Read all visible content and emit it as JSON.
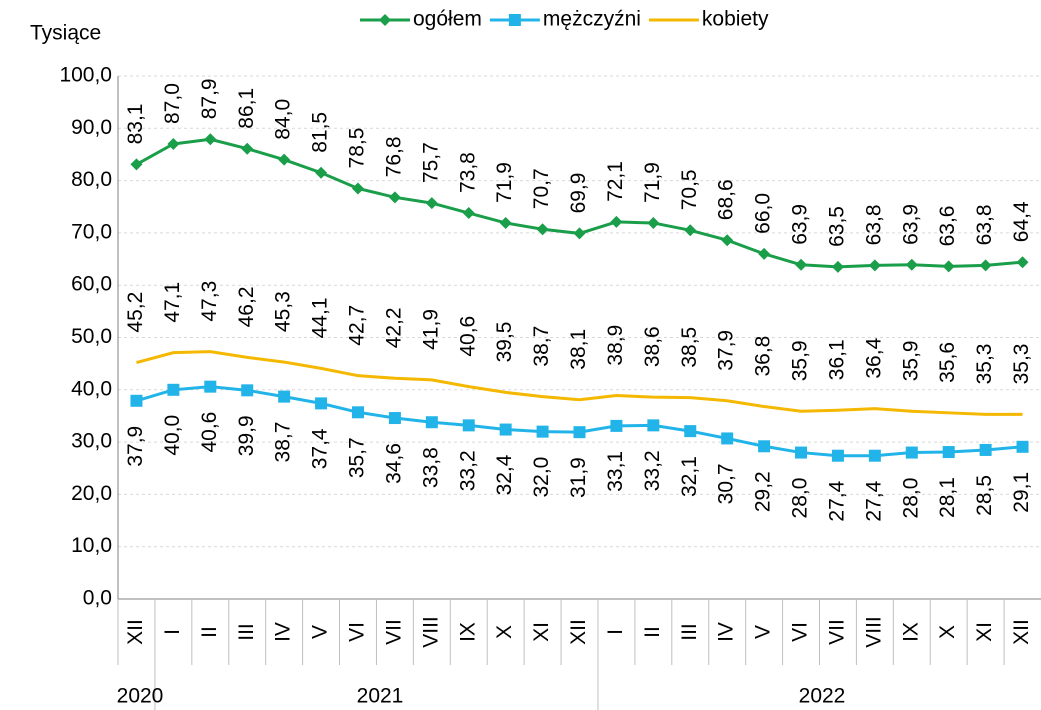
{
  "chart_data": {
    "type": "line",
    "y_label": "Tysiące",
    "categories": [
      "XII",
      "I",
      "II",
      "III",
      "IV",
      "V",
      "VI",
      "VII",
      "VIII",
      "IX",
      "X",
      "XI",
      "XII",
      "I",
      "II",
      "III",
      "IV",
      "V",
      "VI",
      "VII",
      "VIII",
      "IX",
      "X",
      "XI",
      "XII"
    ],
    "years": [
      "2020",
      "2021",
      "2022"
    ],
    "series": [
      {
        "name": "ogółem",
        "color": "#1a9e4a",
        "marker": "diamond",
        "values": [
          83.1,
          87.0,
          87.9,
          86.1,
          84.0,
          81.5,
          78.5,
          76.8,
          75.7,
          73.8,
          71.9,
          70.7,
          69.9,
          72.1,
          71.9,
          70.5,
          68.6,
          66.0,
          63.9,
          63.5,
          63.8,
          63.9,
          63.6,
          63.8,
          64.4
        ],
        "value_labels": [
          "83,1",
          "87,0",
          "87,9",
          "86,1",
          "84,0",
          "81,5",
          "78,5",
          "76,8",
          "75,7",
          "73,8",
          "71,9",
          "70,7",
          "69,9",
          "72,1",
          "71,9",
          "70,5",
          "68,6",
          "66,0",
          "63,9",
          "63,5",
          "63,8",
          "63,9",
          "63,6",
          "63,8",
          "64,4"
        ]
      },
      {
        "name": "mężczyźni",
        "color": "#22b4e8",
        "marker": "square",
        "values": [
          37.9,
          40.0,
          40.6,
          39.9,
          38.7,
          37.4,
          35.7,
          34.6,
          33.8,
          33.2,
          32.4,
          32.0,
          31.9,
          33.1,
          33.2,
          32.1,
          30.7,
          29.2,
          28.0,
          27.4,
          27.4,
          28.0,
          28.1,
          28.5,
          29.1
        ],
        "value_labels": [
          "37,9",
          "40,0",
          "40,6",
          "39,9",
          "38,7",
          "37,4",
          "35,7",
          "34,6",
          "33,8",
          "33,2",
          "32,4",
          "32,0",
          "31,9",
          "33,1",
          "33,2",
          "32,1",
          "30,7",
          "29,2",
          "28,0",
          "27,4",
          "27,4",
          "28,0",
          "28,1",
          "28,5",
          "29,1"
        ]
      },
      {
        "name": "kobiety",
        "color": "#f5b800",
        "marker": "none",
        "values": [
          45.2,
          47.1,
          47.3,
          46.2,
          45.3,
          44.1,
          42.7,
          42.2,
          41.9,
          40.6,
          39.5,
          38.7,
          38.1,
          38.9,
          38.6,
          38.5,
          37.9,
          36.8,
          35.9,
          36.1,
          36.4,
          35.9,
          35.6,
          35.3,
          35.3
        ],
        "value_labels": [
          "45,2",
          "47,1",
          "47,3",
          "46,2",
          "45,3",
          "44,1",
          "42,7",
          "42,2",
          "41,9",
          "40,6",
          "39,5",
          "38,7",
          "38,1",
          "38,9",
          "38,6",
          "38,5",
          "37,9",
          "36,8",
          "35,9",
          "36,1",
          "36,4",
          "35,9",
          "35,6",
          "35,3",
          "35,3"
        ]
      }
    ],
    "ylim": [
      0,
      100
    ],
    "yticks": [
      {
        "value": 0,
        "label": "0,0"
      },
      {
        "value": 10,
        "label": "10,0"
      },
      {
        "value": 20,
        "label": "20,0"
      },
      {
        "value": 30,
        "label": "30,0"
      },
      {
        "value": 40,
        "label": "40,0"
      },
      {
        "value": 50,
        "label": "50,0"
      },
      {
        "value": 60,
        "label": "60,0"
      },
      {
        "value": 70,
        "label": "70,0"
      },
      {
        "value": 80,
        "label": "80,0"
      },
      {
        "value": 90,
        "label": "90,0"
      },
      {
        "value": 100,
        "label": "100,0"
      }
    ],
    "grid": true,
    "legend": "top"
  }
}
